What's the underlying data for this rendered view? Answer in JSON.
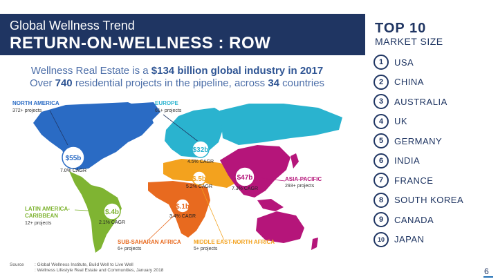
{
  "header": {
    "title": "Global Wellness Trend",
    "subtitle": "RETURN-ON-WELLNESS : ROW"
  },
  "headline": {
    "line1_pre": "Wellness Real Estate is a ",
    "line1_bold": "$134 billion global industry in 2017",
    "line2_pre": "Over ",
    "line2_bold1": "740",
    "line2_mid": " residential projects in the pipeline, across ",
    "line2_bold2": "34",
    "line2_post": " countries"
  },
  "regions": {
    "north_america": {
      "name": "NORTH AMERICA",
      "projects": "372+ projects",
      "value": "$55b",
      "cagr": "7.0% CAGR",
      "color": "#2a6bc4"
    },
    "europe": {
      "name": "EUROPE",
      "projects": "61+ projects",
      "value": "$32b",
      "cagr": "4.5% CAGR",
      "color": "#2ab3cf"
    },
    "asia_pacific": {
      "name": "ASIA-PACIFIC",
      "projects": "293+ projects",
      "value": "$47b",
      "cagr": "7.3% CAGR",
      "color": "#b5157a"
    },
    "latin_america": {
      "name_line1": "LATIN AMERICA-",
      "name_line2": "CARIBBEAN",
      "projects": "12+ projects",
      "value": "$.4b",
      "cagr": "2.1% CAGR",
      "color": "#7fb432"
    },
    "sub_saharan": {
      "name": "SUB-SAHARAN AFRICA",
      "projects": "6+ projects",
      "value": "$.1b",
      "cagr": "3.4% CAGR",
      "color": "#e86a1f"
    },
    "mena": {
      "name": "MIDDLE EAST-NORTH AFRICA",
      "projects": "5+ projects",
      "value": "$.5b",
      "cagr": "5.2% CAGR",
      "color": "#f3a21e"
    }
  },
  "top10": {
    "title": "TOP 10",
    "subtitle": "MARKET SIZE",
    "items": [
      {
        "rank": "1",
        "name": "USA"
      },
      {
        "rank": "2",
        "name": "CHINA"
      },
      {
        "rank": "3",
        "name": "AUSTRALIA"
      },
      {
        "rank": "4",
        "name": "UK"
      },
      {
        "rank": "5",
        "name": "GERMANY"
      },
      {
        "rank": "6",
        "name": "INDIA"
      },
      {
        "rank": "7",
        "name": "FRANCE"
      },
      {
        "rank": "8",
        "name": "SOUTH KOREA"
      },
      {
        "rank": "9",
        "name": "CANADA"
      },
      {
        "rank": "10",
        "name": "JAPAN"
      }
    ]
  },
  "source": {
    "label": "Source",
    "line1": ": Global Wellness Institute, Build Well to Live Well",
    "line2": ": Wellness Lifestyle Real Estate and Communities, January 2018"
  },
  "page_number": "6"
}
